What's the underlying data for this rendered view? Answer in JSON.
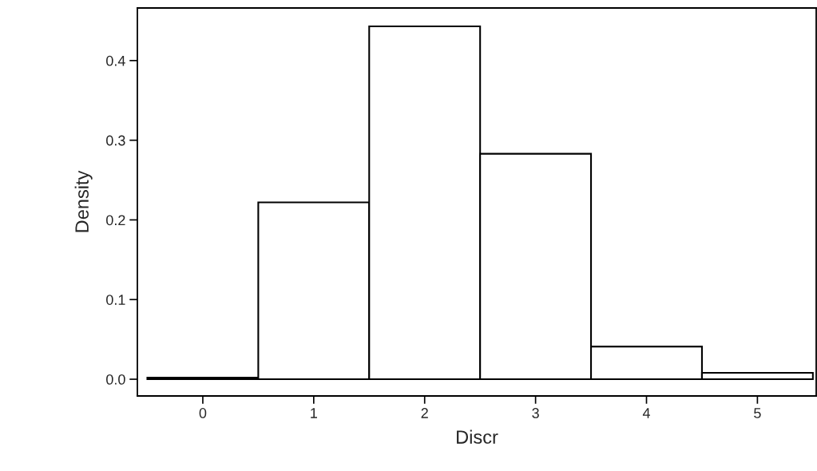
{
  "chart_data": {
    "type": "histogram",
    "xlabel": "Discr",
    "ylabel": "Density",
    "bins": [
      -0.5,
      0.5,
      1.5,
      2.5,
      3.5,
      4.5,
      5.5
    ],
    "values": [
      0.002,
      0.222,
      0.443,
      0.283,
      0.041,
      0.008
    ],
    "color": "#ffffff",
    "xlim": [
      -0.59,
      5.53
    ],
    "xticks": [
      0,
      1,
      2,
      3,
      4,
      5
    ],
    "ylim": [
      -0.021,
      0.466
    ],
    "yticks": [
      {
        "value": 0,
        "label": "0.0"
      },
      0.1,
      0.2,
      0.3,
      0.4
    ],
    "grid": false
  }
}
